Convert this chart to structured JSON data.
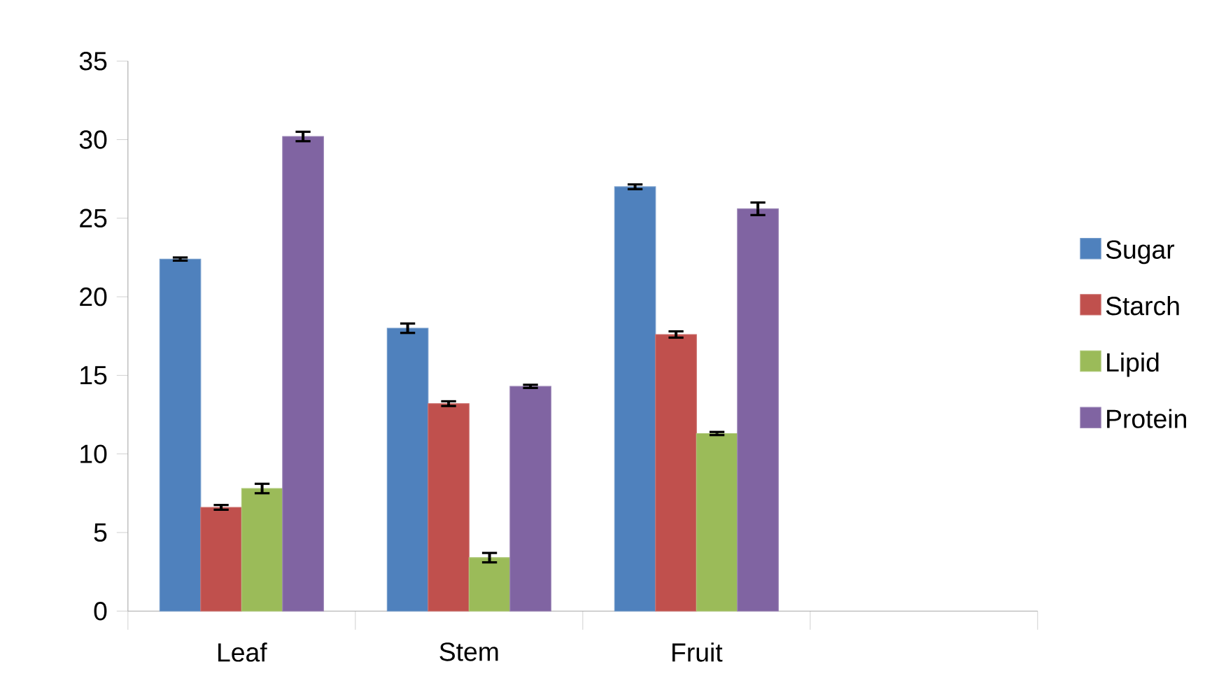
{
  "chart_data": {
    "type": "bar",
    "categories": [
      "Leaf",
      "Stem",
      "Fruit",
      null
    ],
    "series": [
      {
        "name": "Sugar",
        "color": "#4f81bd",
        "values": [
          22.4,
          18.0,
          27.0,
          null
        ],
        "errors": [
          0.1,
          0.3,
          0.15,
          null
        ]
      },
      {
        "name": "Starch",
        "color": "#c0504d",
        "values": [
          6.6,
          13.2,
          17.6,
          null
        ],
        "errors": [
          0.15,
          0.15,
          0.2,
          null
        ]
      },
      {
        "name": "Lipid",
        "color": "#9bbb59",
        "values": [
          7.8,
          3.4,
          11.3,
          null
        ],
        "errors": [
          0.3,
          0.3,
          0.1,
          null
        ]
      },
      {
        "name": "Protein",
        "color": "#8064a2",
        "values": [
          30.2,
          14.3,
          25.6,
          null
        ],
        "errors": [
          0.3,
          0.1,
          0.4,
          null
        ]
      }
    ],
    "ylim": [
      0,
      35
    ],
    "yticks": [
      0,
      5,
      10,
      15,
      20,
      25,
      30,
      35
    ],
    "legend": "right"
  }
}
